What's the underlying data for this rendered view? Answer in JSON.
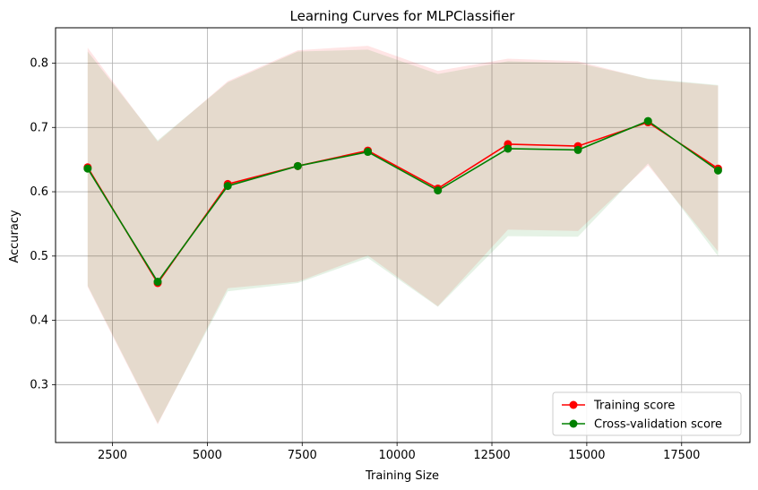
{
  "chart_data": {
    "type": "line",
    "title": "Learning Curves for MLPClassifier",
    "xlabel": "Training Size",
    "ylabel": "Accuracy",
    "xlim": [
      1000,
      19300
    ],
    "ylim": [
      0.21,
      0.855
    ],
    "xticks": [
      2500,
      5000,
      7500,
      10000,
      12500,
      15000,
      17500
    ],
    "yticks": [
      0.3,
      0.4,
      0.5,
      0.6,
      0.7,
      0.8
    ],
    "grid": true,
    "legend_position": "bottom-right",
    "x": [
      1846,
      3692,
      5538,
      7384,
      9230,
      11076,
      12922,
      14768,
      16614,
      18460
    ],
    "series": [
      {
        "name": "Training score",
        "color": "#ff0000",
        "values": [
          0.638,
          0.458,
          0.612,
          0.64,
          0.664,
          0.605,
          0.674,
          0.671,
          0.708,
          0.636
        ],
        "upper": [
          0.824,
          0.678,
          0.772,
          0.82,
          0.827,
          0.788,
          0.807,
          0.803,
          0.775,
          0.765
        ],
        "lower": [
          0.452,
          0.238,
          0.45,
          0.46,
          0.501,
          0.422,
          0.541,
          0.539,
          0.641,
          0.507
        ]
      },
      {
        "name": "Cross-validation score",
        "color": "#008000",
        "values": [
          0.636,
          0.46,
          0.609,
          0.64,
          0.662,
          0.602,
          0.667,
          0.665,
          0.71,
          0.633
        ],
        "upper": [
          0.818,
          0.68,
          0.77,
          0.818,
          0.821,
          0.783,
          0.803,
          0.8,
          0.776,
          0.766
        ],
        "lower": [
          0.454,
          0.24,
          0.445,
          0.458,
          0.497,
          0.421,
          0.531,
          0.53,
          0.644,
          0.5
        ]
      }
    ]
  }
}
